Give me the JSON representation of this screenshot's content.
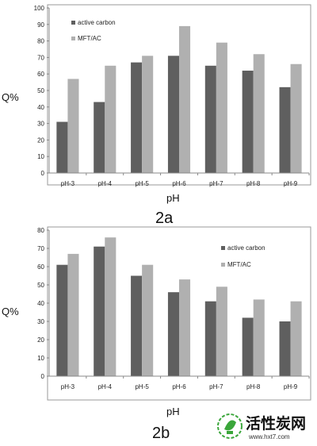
{
  "colors": {
    "series1": "#5f5f5f",
    "series2": "#b0b0b0",
    "axis": "#888888",
    "frame": "#9a9a9a",
    "watermark_green": "#3aa63a"
  },
  "chart_data": [
    {
      "type": "bar",
      "figure_label": "2a",
      "categories": [
        "pH-3",
        "pH-4",
        "pH-5",
        "pH-6",
        "pH-7",
        "pH-8",
        "pH-9"
      ],
      "series": [
        {
          "name": "active carbon",
          "values": [
            31,
            43,
            67,
            71,
            65,
            62,
            52
          ]
        },
        {
          "name": "MFT/AC",
          "values": [
            57,
            65,
            71,
            89,
            79,
            72,
            66
          ]
        }
      ],
      "xlabel": "pH",
      "ylabel": "Q%",
      "ylim": [
        0,
        100
      ],
      "yticks": [
        0,
        10,
        20,
        30,
        40,
        50,
        60,
        70,
        80,
        90,
        100
      ],
      "legend": "top-left",
      "grid": false
    },
    {
      "type": "bar",
      "figure_label": "2b",
      "categories": [
        "pH-3",
        "pH-4",
        "pH-5",
        "pH-6",
        "pH-7",
        "pH-8",
        "pH-9"
      ],
      "series": [
        {
          "name": "active carbon",
          "values": [
            61,
            71,
            55,
            46,
            41,
            32,
            30
          ]
        },
        {
          "name": "MFT/AC",
          "values": [
            67,
            76,
            61,
            53,
            49,
            42,
            41
          ]
        }
      ],
      "xlabel": "pH",
      "ylabel": "Q%",
      "ylim": [
        0,
        80
      ],
      "yticks": [
        0,
        10,
        20,
        30,
        40,
        50,
        60,
        70,
        80
      ],
      "legend": "top-right",
      "grid": false
    }
  ],
  "watermark": {
    "name": "活性炭网",
    "url": "www.hxt7.com",
    "icon": "leaf-logo-icon"
  }
}
